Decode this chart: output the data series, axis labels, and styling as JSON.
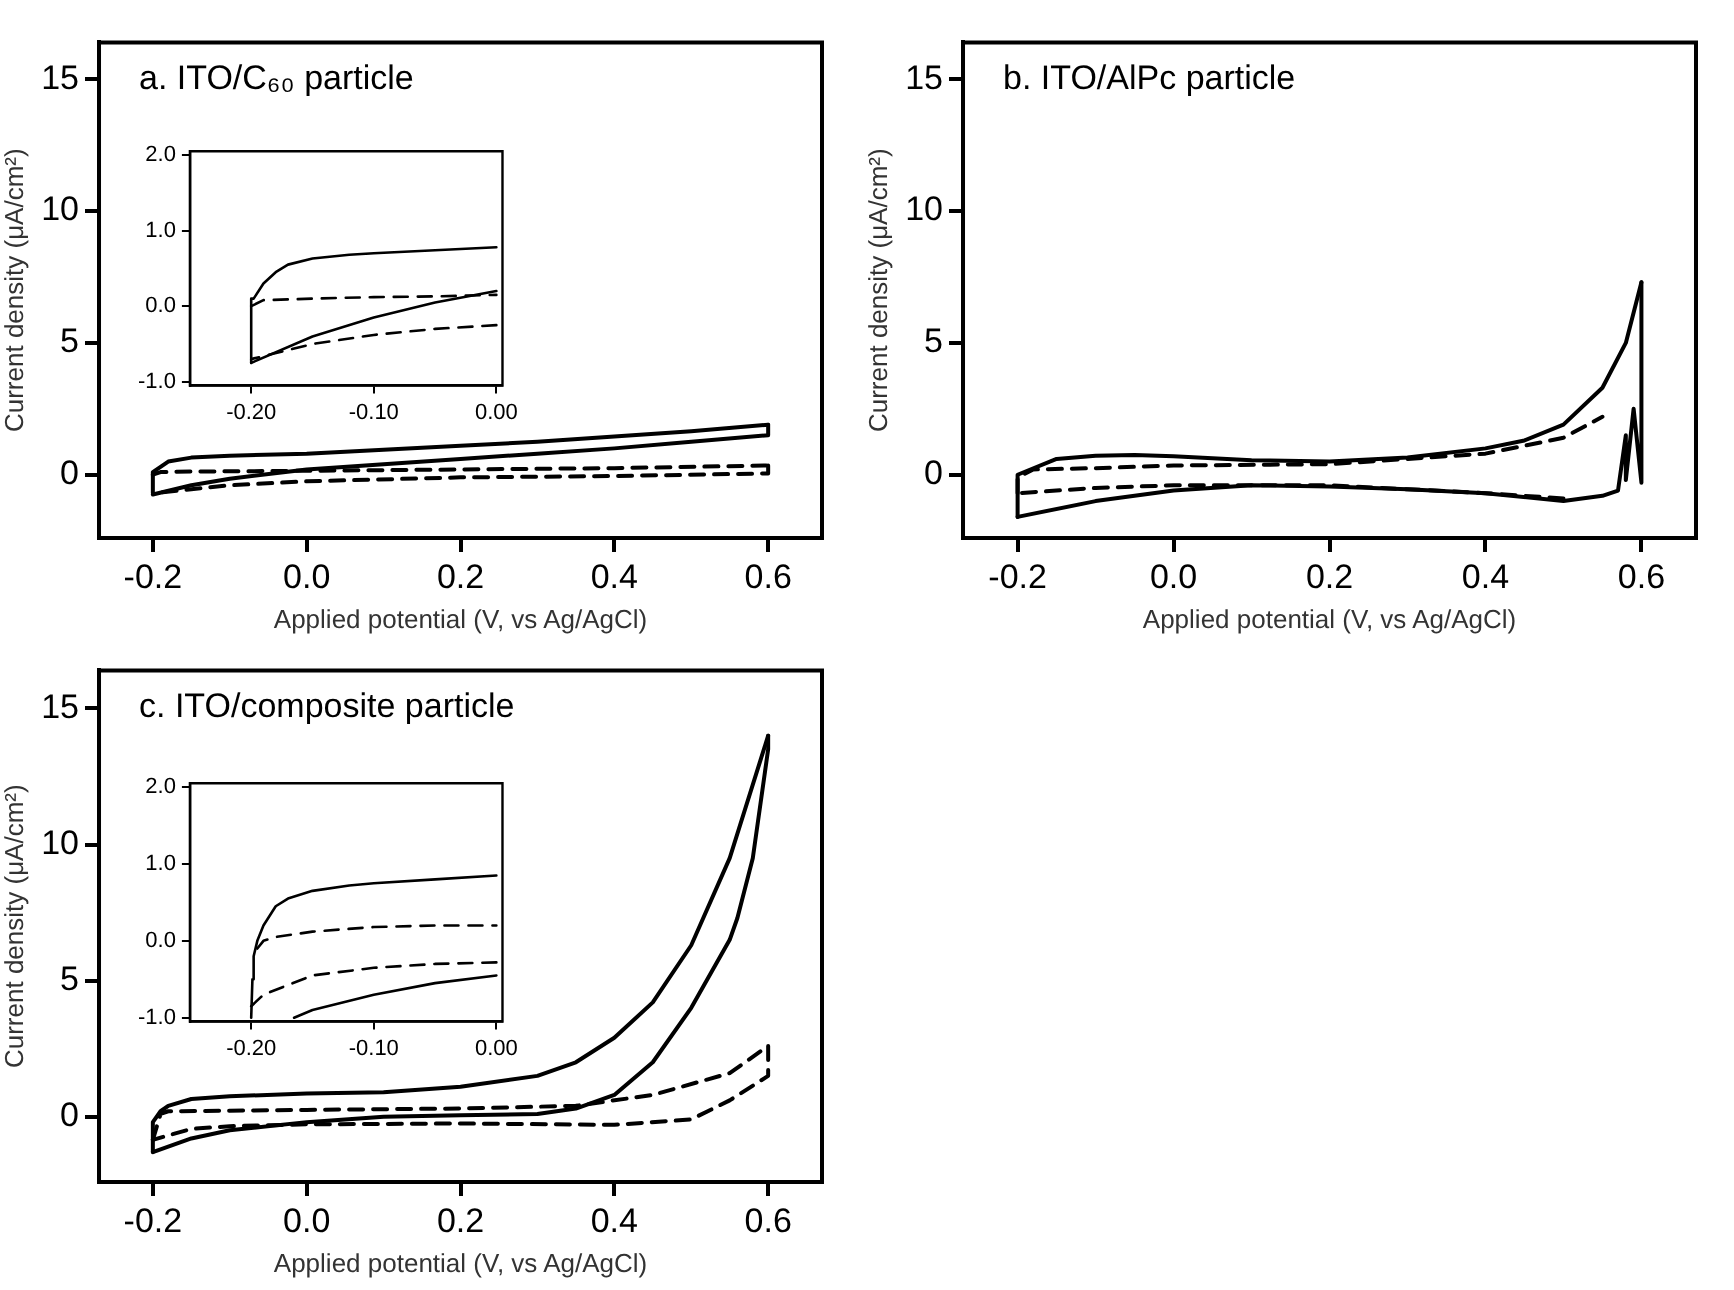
{
  "chart_data": [
    {
      "type": "line",
      "title": "a. ITO/C₆₀ particle",
      "xlabel": "Applied potential (V, vs Ag/AgCl)",
      "ylabel": "Current density (μA/cm²)",
      "xlim": [
        -0.27,
        0.67
      ],
      "ylim": [
        -2.4,
        16.4
      ],
      "xticks": [
        -0.2,
        {
          "value": 0,
          "label": "0.0"
        },
        0.2,
        0.4,
        0.6
      ],
      "yticks": [
        0,
        5,
        10,
        15
      ],
      "grid": false,
      "legend": false,
      "marker": "none",
      "series": [
        {
          "color": "#000000",
          "line_style": "solid",
          "x": [
            -0.2,
            -0.2,
            -0.19,
            -0.18,
            -0.15,
            -0.1,
            0.0,
            0.1,
            0.2,
            0.3,
            0.4,
            0.5,
            0.6
          ],
          "values": [
            -0.7,
            0.1,
            0.3,
            0.5,
            0.65,
            0.72,
            0.8,
            0.95,
            1.1,
            1.25,
            1.45,
            1.65,
            1.9
          ]
        },
        {
          "color": "#000000",
          "line_style": "solid",
          "x": [
            0.6,
            0.6,
            0.5,
            0.4,
            0.3,
            0.2,
            0.1,
            0.0,
            -0.1,
            -0.15,
            -0.2
          ],
          "values": [
            1.9,
            1.5,
            1.25,
            1.0,
            0.8,
            0.6,
            0.4,
            0.2,
            -0.15,
            -0.4,
            -0.75
          ]
        },
        {
          "color": "#000000",
          "line_style": "dashed",
          "x": [
            -0.2,
            -0.19,
            -0.15,
            -0.1,
            0.0,
            0.2,
            0.4,
            0.6
          ],
          "values": [
            0.0,
            0.1,
            0.12,
            0.13,
            0.15,
            0.2,
            0.25,
            0.35
          ]
        },
        {
          "color": "#000000",
          "line_style": "dashed",
          "x": [
            0.6,
            0.6,
            0.4,
            0.2,
            0.0,
            -0.1,
            -0.15,
            -0.2
          ],
          "values": [
            0.35,
            0.05,
            -0.05,
            -0.1,
            -0.25,
            -0.4,
            -0.55,
            -0.7
          ]
        }
      ]
    },
    {
      "type": "line",
      "xlim": [
        -0.25,
        0.005
      ],
      "ylim": [
        -1.05,
        2.05
      ],
      "xticks": [
        {
          "value": -0.2,
          "label": "-0.20"
        },
        {
          "value": -0.1,
          "label": "-0.10"
        },
        {
          "value": 0,
          "label": "0.00"
        }
      ],
      "yticks": [
        {
          "value": -1,
          "label": "-1.0"
        },
        {
          "value": 0,
          "label": "0.0"
        },
        {
          "value": 1,
          "label": "1.0"
        },
        {
          "value": 2,
          "label": "2.0"
        }
      ],
      "grid": false,
      "legend": false,
      "marker": "none",
      "series": [
        {
          "color": "#000000",
          "line_style": "solid",
          "x": [
            -0.2,
            -0.2,
            -0.198,
            -0.19,
            -0.18,
            -0.17,
            -0.15,
            -0.12,
            -0.1,
            -0.05,
            0.0
          ],
          "values": [
            -0.75,
            0.1,
            0.1,
            0.3,
            0.45,
            0.55,
            0.63,
            0.68,
            0.7,
            0.74,
            0.78
          ]
        },
        {
          "color": "#000000",
          "line_style": "solid",
          "x": [
            0.0,
            -0.05,
            -0.1,
            -0.15,
            -0.2
          ],
          "values": [
            0.2,
            0.05,
            -0.15,
            -0.4,
            -0.75
          ]
        },
        {
          "color": "#000000",
          "line_style": "dashed",
          "x": [
            -0.2,
            -0.19,
            -0.15,
            -0.1,
            -0.05,
            0.0
          ],
          "values": [
            0.0,
            0.08,
            0.1,
            0.12,
            0.13,
            0.15
          ]
        },
        {
          "color": "#000000",
          "line_style": "dashed",
          "x": [
            0.0,
            -0.05,
            -0.1,
            -0.15,
            -0.2
          ],
          "values": [
            -0.25,
            -0.3,
            -0.38,
            -0.5,
            -0.7
          ]
        }
      ]
    },
    {
      "type": "line",
      "title": "b. ITO/AlPc particle",
      "xlabel": "Applied potential (V, vs Ag/AgCl)",
      "ylabel": "Current density (μA/cm²)",
      "xlim": [
        -0.27,
        0.67
      ],
      "ylim": [
        -2.4,
        16.4
      ],
      "xticks": [
        -0.2,
        {
          "value": 0,
          "label": "0.0"
        },
        0.2,
        0.4,
        0.6
      ],
      "yticks": [
        0,
        5,
        10,
        15
      ],
      "grid": false,
      "legend": false,
      "marker": "none",
      "series": [
        {
          "color": "#000000",
          "line_style": "solid",
          "x": [
            -0.2,
            -0.2,
            -0.15,
            -0.1,
            -0.05,
            0.0,
            0.1,
            0.2,
            0.3,
            0.4,
            0.45,
            0.5,
            0.55,
            0.58,
            0.6
          ],
          "values": [
            -1.6,
            0.0,
            0.6,
            0.72,
            0.75,
            0.7,
            0.55,
            0.5,
            0.65,
            1.0,
            1.3,
            1.9,
            3.3,
            5.0,
            7.3
          ]
        },
        {
          "color": "#000000",
          "line_style": "solid",
          "x": [
            0.6,
            0.6,
            0.59,
            0.58,
            0.58,
            0.57,
            0.55,
            0.5,
            0.4,
            0.3,
            0.2,
            0.1,
            0.0,
            -0.1,
            -0.2
          ],
          "values": [
            7.3,
            -0.3,
            2.5,
            -0.2,
            1.5,
            -0.6,
            -0.8,
            -1.0,
            -0.7,
            -0.55,
            -0.45,
            -0.4,
            -0.6,
            -1.0,
            -1.6
          ]
        },
        {
          "color": "#000000",
          "line_style": "dashed",
          "x": [
            -0.2,
            -0.2,
            -0.18,
            -0.1,
            0.0,
            0.2,
            0.4,
            0.5,
            0.55
          ],
          "values": [
            -0.7,
            -0.1,
            0.2,
            0.25,
            0.35,
            0.4,
            0.8,
            1.4,
            2.2
          ]
        },
        {
          "color": "#000000",
          "line_style": "dashed",
          "x": [
            0.5,
            0.4,
            0.2,
            0.0,
            -0.1,
            -0.2
          ],
          "values": [
            -0.9,
            -0.7,
            -0.4,
            -0.4,
            -0.5,
            -0.7
          ]
        }
      ]
    },
    {
      "type": "line",
      "title": "c. ITO/composite particle",
      "xlabel": "Applied potential (V, vs Ag/AgCl)",
      "ylabel": "Current density (μA/cm²)",
      "xlim": [
        -0.27,
        0.67
      ],
      "ylim": [
        -2.4,
        16.4
      ],
      "xticks": [
        -0.2,
        {
          "value": 0,
          "label": "0.0"
        },
        0.2,
        0.4,
        0.6
      ],
      "yticks": [
        0,
        5,
        10,
        15
      ],
      "grid": false,
      "legend": false,
      "marker": "none",
      "series": [
        {
          "color": "#000000",
          "line_style": "solid",
          "x": [
            -0.2,
            -0.2,
            -0.19,
            -0.18,
            -0.15,
            -0.1,
            0.0,
            0.1,
            0.2,
            0.3,
            0.35,
            0.4,
            0.45,
            0.5,
            0.55,
            0.6
          ],
          "values": [
            -1.3,
            -0.2,
            0.2,
            0.4,
            0.65,
            0.75,
            0.85,
            0.9,
            1.1,
            1.5,
            2.0,
            2.9,
            4.2,
            6.3,
            9.5,
            14.0
          ]
        },
        {
          "color": "#000000",
          "line_style": "solid",
          "x": [
            0.6,
            0.6,
            0.58,
            0.56,
            0.55,
            0.5,
            0.45,
            0.4,
            0.35,
            0.3,
            0.2,
            0.1,
            0.0,
            -0.1,
            -0.15,
            -0.2
          ],
          "values": [
            14.0,
            13.5,
            9.5,
            7.3,
            6.5,
            4.0,
            2.0,
            0.8,
            0.3,
            0.1,
            0.05,
            0.0,
            -0.2,
            -0.5,
            -0.8,
            -1.3
          ]
        },
        {
          "color": "#000000",
          "line_style": "dashed",
          "x": [
            -0.2,
            -0.19,
            -0.18,
            -0.1,
            0.0,
            0.2,
            0.35,
            0.45,
            0.55,
            0.6
          ],
          "values": [
            -0.85,
            0.1,
            0.2,
            0.22,
            0.25,
            0.3,
            0.4,
            0.8,
            1.6,
            2.6
          ]
        },
        {
          "color": "#000000",
          "line_style": "dashed",
          "x": [
            0.6,
            0.6,
            0.55,
            0.5,
            0.4,
            0.2,
            0.0,
            -0.1,
            -0.15,
            -0.2
          ],
          "values": [
            2.6,
            1.5,
            0.6,
            -0.1,
            -0.3,
            -0.25,
            -0.28,
            -0.35,
            -0.45,
            -0.85
          ]
        }
      ]
    },
    {
      "type": "line",
      "xlim": [
        -0.25,
        0.005
      ],
      "ylim": [
        -1.05,
        2.05
      ],
      "xticks": [
        {
          "value": -0.2,
          "label": "-0.20"
        },
        {
          "value": -0.1,
          "label": "-0.10"
        },
        {
          "value": 0,
          "label": "0.00"
        }
      ],
      "yticks": [
        {
          "value": -1,
          "label": "-1.0"
        },
        {
          "value": 0,
          "label": "0.0"
        },
        {
          "value": 1,
          "label": "1.0"
        },
        {
          "value": 2,
          "label": "2.0"
        }
      ],
      "grid": false,
      "legend": false,
      "marker": "none",
      "series": [
        {
          "color": "#000000",
          "line_style": "solid",
          "x": [
            -0.2,
            -0.199,
            -0.198,
            -0.195,
            -0.19,
            -0.18,
            -0.17,
            -0.15,
            -0.12,
            -0.1,
            -0.05,
            0.0
          ],
          "values": [
            -1.0,
            -0.5,
            -0.2,
            0.0,
            0.2,
            0.45,
            0.55,
            0.65,
            0.72,
            0.75,
            0.8,
            0.85
          ]
        },
        {
          "color": "#000000",
          "line_style": "solid",
          "x": [
            0.0,
            -0.05,
            -0.1,
            -0.15,
            -0.165
          ],
          "values": [
            -0.45,
            -0.55,
            -0.7,
            -0.9,
            -1.0
          ]
        },
        {
          "color": "#000000",
          "line_style": "dashed",
          "x": [
            -0.195,
            -0.19,
            -0.18,
            -0.15,
            -0.1,
            -0.05,
            0.0
          ],
          "values": [
            -0.1,
            0.0,
            0.05,
            0.12,
            0.18,
            0.2,
            0.2
          ]
        },
        {
          "color": "#000000",
          "line_style": "dashed",
          "x": [
            0.0,
            -0.05,
            -0.1,
            -0.15,
            -0.19,
            -0.2
          ],
          "values": [
            -0.28,
            -0.3,
            -0.35,
            -0.45,
            -0.7,
            -0.85
          ]
        }
      ]
    }
  ]
}
